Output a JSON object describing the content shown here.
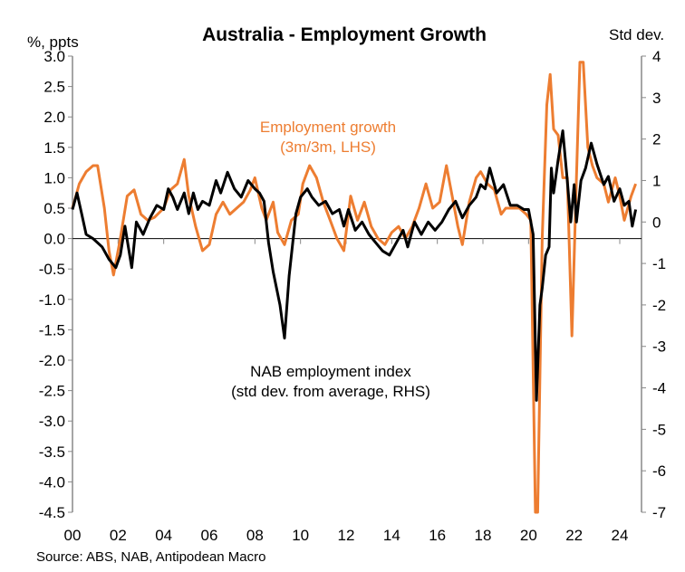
{
  "chart_data": {
    "type": "line",
    "title": "Australia - Employment Growth",
    "ylabel_left": "%, ppts",
    "ylabel_right": "Std dev.",
    "source": "Source: ABS, NAB, Antipodean Macro",
    "xlim": [
      2000,
      2024.9
    ],
    "ylim_left": [
      -4.5,
      3.0
    ],
    "ylim_right": [
      -7,
      4
    ],
    "x_ticks": [
      2000,
      2002,
      2004,
      2006,
      2008,
      2010,
      2012,
      2014,
      2016,
      2018,
      2020,
      2022,
      2024
    ],
    "x_tick_labels": [
      "00",
      "02",
      "04",
      "06",
      "08",
      "10",
      "12",
      "14",
      "16",
      "18",
      "20",
      "22",
      "24"
    ],
    "y_left_ticks": [
      "3.0",
      "2.5",
      "2.0",
      "1.5",
      "1.0",
      "0.5",
      "0.0",
      "-0.5",
      "-1.0",
      "-1.5",
      "-2.0",
      "-2.5",
      "-3.0",
      "-3.5",
      "-4.0",
      "-4.5"
    ],
    "y_right_ticks": [
      "4",
      "3",
      "2",
      "1",
      "0",
      "-1",
      "-2",
      "-3",
      "-4",
      "-5",
      "-6",
      "-7"
    ],
    "grid": false,
    "series": [
      {
        "name": "Employment growth",
        "annotation": [
          "Employment growth",
          "(3m/3m, LHS)"
        ],
        "axis": "left",
        "color": "#ED7D31",
        "x": [
          2000.0,
          2000.3,
          2000.6,
          2000.9,
          2001.1,
          2001.4,
          2001.6,
          2001.8,
          2002.1,
          2002.4,
          2002.7,
          2003.0,
          2003.3,
          2003.6,
          2004.0,
          2004.3,
          2004.6,
          2004.9,
          2005.1,
          2005.4,
          2005.7,
          2006.0,
          2006.3,
          2006.6,
          2006.9,
          2007.2,
          2007.5,
          2007.8,
          2008.0,
          2008.3,
          2008.5,
          2008.8,
          2009.0,
          2009.3,
          2009.6,
          2009.9,
          2010.1,
          2010.4,
          2010.7,
          2011.0,
          2011.3,
          2011.6,
          2011.9,
          2012.2,
          2012.5,
          2012.8,
          2013.1,
          2013.4,
          2013.7,
          2014.0,
          2014.3,
          2014.6,
          2014.9,
          2015.2,
          2015.5,
          2015.8,
          2016.1,
          2016.4,
          2016.7,
          2016.9,
          2017.1,
          2017.4,
          2017.7,
          2017.9,
          2018.2,
          2018.5,
          2018.8,
          2019.0,
          2019.3,
          2019.6,
          2019.9,
          2020.1,
          2020.3,
          2020.4,
          2020.6,
          2020.8,
          2020.95,
          2021.1,
          2021.3,
          2021.5,
          2021.7,
          2021.9,
          2022.1,
          2022.25,
          2022.4,
          2022.6,
          2022.8,
          2023.0,
          2023.3,
          2023.5,
          2023.8,
          2024.0,
          2024.2,
          2024.5,
          2024.7
        ],
        "values": [
          0.5,
          0.9,
          1.1,
          1.2,
          1.2,
          0.5,
          -0.2,
          -0.6,
          0.0,
          0.7,
          0.8,
          0.4,
          0.3,
          0.35,
          0.5,
          0.8,
          0.9,
          1.3,
          0.7,
          0.2,
          -0.2,
          -0.1,
          0.4,
          0.6,
          0.4,
          0.5,
          0.6,
          0.8,
          1.0,
          0.5,
          0.3,
          0.6,
          0.1,
          -0.1,
          0.3,
          0.4,
          0.9,
          1.2,
          1.0,
          0.6,
          0.3,
          0.0,
          -0.2,
          0.7,
          0.3,
          0.6,
          0.2,
          0.0,
          -0.1,
          0.1,
          0.2,
          0.0,
          0.2,
          0.5,
          0.9,
          0.5,
          0.6,
          1.2,
          0.6,
          0.2,
          -0.1,
          0.6,
          1.0,
          1.1,
          0.9,
          0.8,
          0.4,
          0.5,
          0.5,
          0.5,
          0.4,
          0.3,
          -4.5,
          -4.5,
          0.0,
          2.2,
          2.7,
          1.8,
          1.7,
          1.0,
          1.0,
          -1.6,
          1.0,
          2.9,
          2.9,
          1.5,
          1.2,
          1.0,
          0.9,
          0.6,
          1.0,
          0.7,
          0.3,
          0.7,
          0.9
        ]
      },
      {
        "name": "NAB employment index",
        "annotation": [
          "NAB employment index",
          "(std dev. from average, RHS)"
        ],
        "axis": "right",
        "color": "#000000",
        "x": [
          2000.0,
          2000.2,
          2000.4,
          2000.6,
          2000.9,
          2001.3,
          2001.6,
          2001.9,
          2002.1,
          2002.3,
          2002.6,
          2002.8,
          2003.1,
          2003.4,
          2003.7,
          2004.0,
          2004.2,
          2004.4,
          2004.6,
          2004.9,
          2005.1,
          2005.3,
          2005.5,
          2005.7,
          2006.0,
          2006.3,
          2006.5,
          2006.8,
          2007.1,
          2007.4,
          2007.7,
          2008.0,
          2008.2,
          2008.4,
          2008.6,
          2008.8,
          2009.1,
          2009.3,
          2009.5,
          2009.8,
          2010.0,
          2010.3,
          2010.5,
          2010.8,
          2011.1,
          2011.4,
          2011.7,
          2011.9,
          2012.1,
          2012.4,
          2012.7,
          2013.0,
          2013.3,
          2013.6,
          2013.9,
          2014.2,
          2014.5,
          2014.7,
          2015.0,
          2015.3,
          2015.6,
          2015.9,
          2016.2,
          2016.5,
          2016.8,
          2017.1,
          2017.4,
          2017.7,
          2017.9,
          2018.1,
          2018.3,
          2018.6,
          2018.9,
          2019.2,
          2019.5,
          2019.8,
          2020.0,
          2020.2,
          2020.35,
          2020.5,
          2020.6,
          2020.75,
          2020.9,
          2021.0,
          2021.1,
          2021.3,
          2021.5,
          2021.7,
          2021.85,
          2022.0,
          2022.1,
          2022.3,
          2022.5,
          2022.75,
          2023.0,
          2023.3,
          2023.5,
          2023.75,
          2024.0,
          2024.2,
          2024.4,
          2024.55,
          2024.7
        ],
        "values": [
          0.3,
          0.7,
          0.2,
          -0.3,
          -0.4,
          -0.6,
          -0.9,
          -1.1,
          -0.8,
          -0.1,
          -1.1,
          0.0,
          -0.3,
          0.1,
          0.4,
          0.3,
          0.8,
          0.6,
          0.3,
          0.7,
          0.2,
          0.7,
          0.3,
          0.5,
          0.4,
          1.0,
          0.7,
          1.2,
          0.8,
          0.6,
          1.0,
          0.8,
          0.7,
          0.5,
          -0.5,
          -1.2,
          -2.0,
          -2.8,
          -1.3,
          0.2,
          0.6,
          0.8,
          0.6,
          0.4,
          0.5,
          0.2,
          0.3,
          -0.1,
          0.3,
          -0.2,
          0.0,
          -0.3,
          -0.5,
          -0.7,
          -0.8,
          -0.5,
          -0.2,
          -0.6,
          0.0,
          -0.3,
          0.0,
          -0.2,
          0.0,
          0.3,
          0.5,
          0.1,
          0.4,
          0.6,
          0.9,
          0.8,
          1.3,
          0.7,
          0.9,
          0.4,
          0.4,
          0.3,
          0.3,
          -0.3,
          -4.3,
          -2.0,
          -1.6,
          -0.8,
          -0.6,
          1.3,
          0.7,
          1.5,
          2.2,
          1.0,
          0.0,
          0.9,
          0.0,
          1.0,
          1.3,
          1.9,
          1.4,
          0.9,
          1.1,
          0.5,
          0.8,
          0.4,
          0.5,
          -0.1,
          0.3
        ]
      }
    ]
  }
}
